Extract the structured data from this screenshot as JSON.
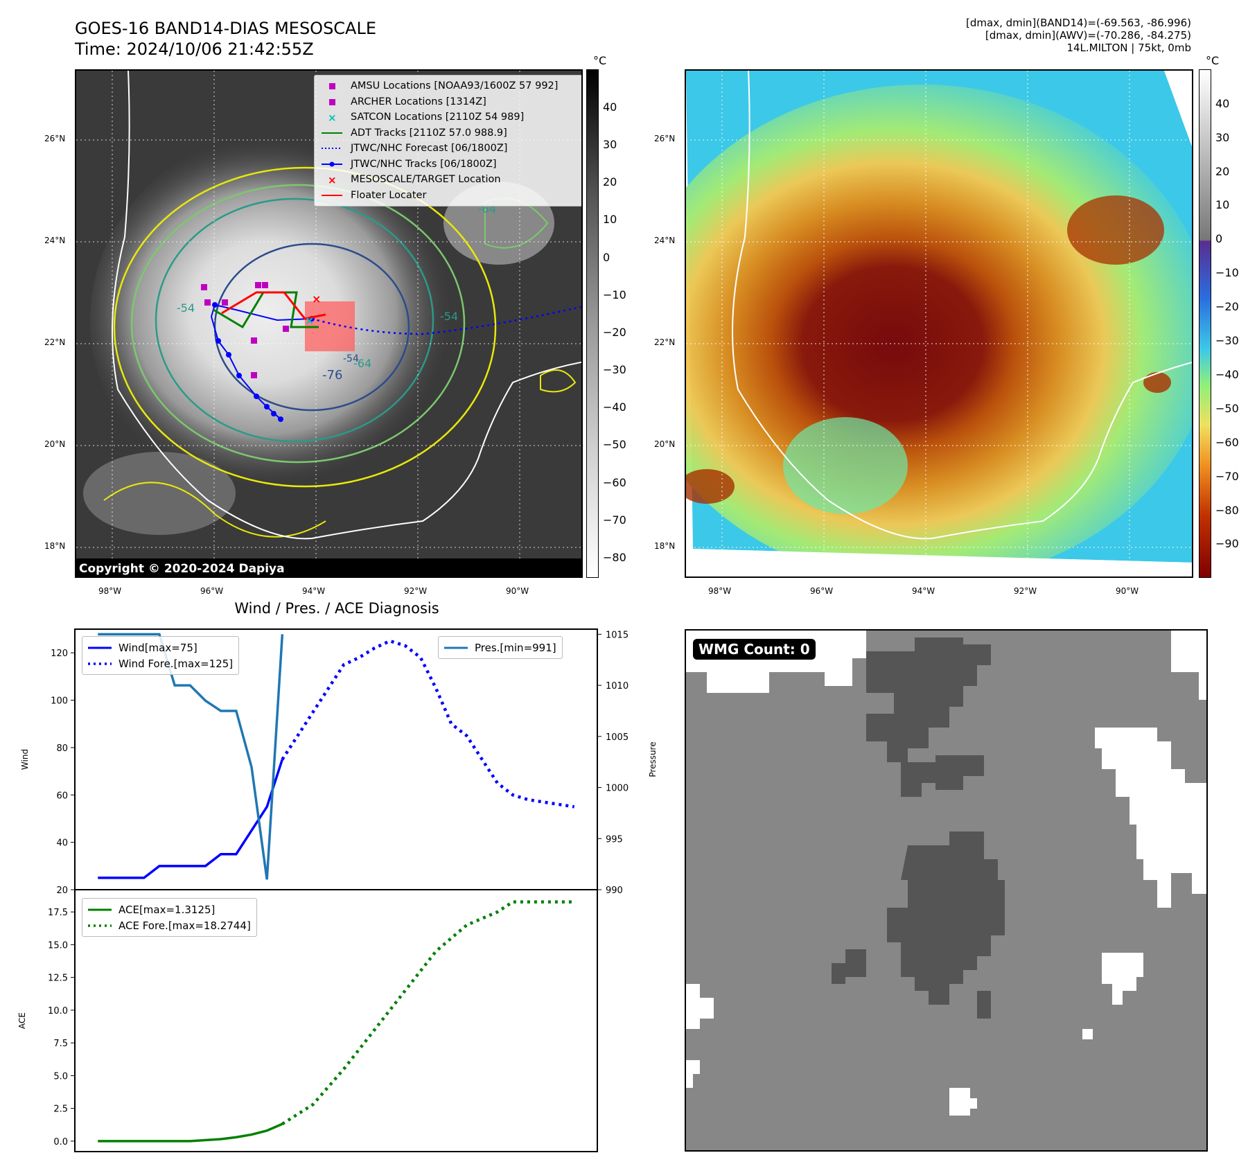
{
  "header": {
    "title_line1": "GOES-16 BAND14-DIAS MESOSCALE",
    "title_line2": "Time: 2024/10/06 21:42:55Z",
    "info_line1": "[dmax, dmin](BAND14)=(-69.563, -86.996)",
    "info_line2": "[dmax, dmin](AWV)=(-70.286, -84.275)",
    "info_line3": "14L.MILTON | 75kt, 0mb"
  },
  "map_axes": {
    "lat_labels": [
      "26°N",
      "24°N",
      "22°N",
      "20°N",
      "18°N"
    ],
    "lon_labels": [
      "98°W",
      "96°W",
      "94°W",
      "92°W",
      "90°W"
    ]
  },
  "left_map": {
    "legend": [
      {
        "label": "AMSU Locations [NOAA93/1600Z 57 992]",
        "marker": "square",
        "color": "#c000c0"
      },
      {
        "label": "ARCHER Locations [1314Z]",
        "marker": "square",
        "color": "#c000c0"
      },
      {
        "label": "SATCON Locations [2110Z 54 989]",
        "marker": "x",
        "color": "#00c0c0"
      },
      {
        "label": "ADT Tracks [2110Z 57.0 988.9]",
        "marker": "line",
        "color": "#008000"
      },
      {
        "label": "JTWC/NHC Forecast [06/1800Z]",
        "marker": "dotted",
        "color": "#0000ff"
      },
      {
        "label": "JTWC/NHC Tracks [06/1800Z]",
        "marker": "line-dot",
        "color": "#0000ff"
      },
      {
        "label": "MESOSCALE/TARGET Location",
        "marker": "x",
        "color": "#ff0000"
      },
      {
        "label": "Floater Locater",
        "marker": "line",
        "color": "#ff0000"
      }
    ],
    "contour_labels": [
      "-54",
      "-64",
      "-54",
      "-64",
      "-76",
      "-54"
    ],
    "copyright": "Copyright © 2020-2024 Dapiya",
    "colorbar_unit": "°C",
    "colorbar_ticks": [
      "40",
      "30",
      "20",
      "10",
      "0",
      "−10",
      "−20",
      "−30",
      "−40",
      "−50",
      "−60",
      "−70",
      "−80"
    ]
  },
  "right_map": {
    "colorbar_unit": "°C",
    "colorbar_ticks": [
      "40",
      "30",
      "20",
      "10",
      "0",
      "−10",
      "−20",
      "−30",
      "−40",
      "−50",
      "−60",
      "−70",
      "−80",
      "−90"
    ]
  },
  "wmg": {
    "badge": "WMG Count: 0"
  },
  "chart_data": [
    {
      "type": "line",
      "title": "Wind / Pres. / ACE Diagnosis",
      "ylabel": "Wind",
      "y2label": "Pressure",
      "ylim": [
        20,
        130
      ],
      "y2lim": [
        990,
        1015.5
      ],
      "yticks": [
        "120",
        "100",
        "80",
        "60",
        "40",
        "20"
      ],
      "y2ticks": [
        "1015",
        "1010",
        "1005",
        "1000",
        "995",
        "990"
      ],
      "x": [
        0,
        1,
        2,
        3,
        4,
        5,
        6,
        7,
        8,
        9,
        10,
        11,
        12,
        13,
        14,
        15,
        16,
        17,
        18,
        19,
        20,
        21,
        22,
        23,
        24,
        25,
        26,
        27,
        28,
        29,
        30,
        31
      ],
      "series": [
        {
          "name": "Wind[max=75]",
          "axis": "left",
          "style": "solid",
          "color": "#0000ff",
          "x": [
            0,
            3,
            4,
            5,
            7,
            8,
            9,
            11,
            12
          ],
          "values": [
            25,
            25,
            30,
            30,
            30,
            35,
            35,
            55,
            75
          ]
        },
        {
          "name": "Wind Fore.[max=125]",
          "axis": "left",
          "style": "dotted",
          "color": "#0000ff",
          "x": [
            12,
            13,
            14,
            15,
            16,
            17,
            18,
            19,
            20,
            21,
            22,
            23,
            24,
            25,
            26,
            27,
            28,
            29,
            30,
            31
          ],
          "values": [
            75,
            85,
            95,
            105,
            115,
            118,
            122,
            125,
            123,
            118,
            105,
            90,
            85,
            75,
            65,
            60,
            58,
            57,
            56,
            55
          ]
        },
        {
          "name": "Pres.[min=991]",
          "axis": "right",
          "style": "solid",
          "color": "#1f77b4",
          "x": [
            0,
            4,
            5,
            6,
            7,
            8,
            9,
            10,
            11,
            12
          ],
          "values": [
            1015,
            1015,
            1010,
            1010,
            1008.5,
            1007.5,
            1007.5,
            1002,
            991,
            1015
          ]
        }
      ]
    },
    {
      "type": "line",
      "ylabel": "ACE",
      "ylim": [
        -0.8,
        19.2
      ],
      "yticks": [
        "17.5",
        "15.0",
        "12.5",
        "10.0",
        "7.5",
        "5.0",
        "2.5",
        "0.0"
      ],
      "series": [
        {
          "name": "ACE[max=1.3125]",
          "style": "solid",
          "color": "#008000",
          "x": [
            0,
            3,
            6,
            8,
            9,
            10,
            11,
            12
          ],
          "values": [
            0,
            0,
            0,
            0.15,
            0.3,
            0.5,
            0.8,
            1.31
          ]
        },
        {
          "name": "ACE Fore.[max=18.2744]",
          "style": "dotted",
          "color": "#008000",
          "x": [
            12,
            14,
            16,
            18,
            20,
            22,
            24,
            26,
            27,
            28,
            29,
            30,
            31
          ],
          "values": [
            1.31,
            2.8,
            5.5,
            8.5,
            11.5,
            14.5,
            16.5,
            17.5,
            18.27,
            18.27,
            18.27,
            18.27,
            18.27
          ]
        }
      ]
    }
  ]
}
